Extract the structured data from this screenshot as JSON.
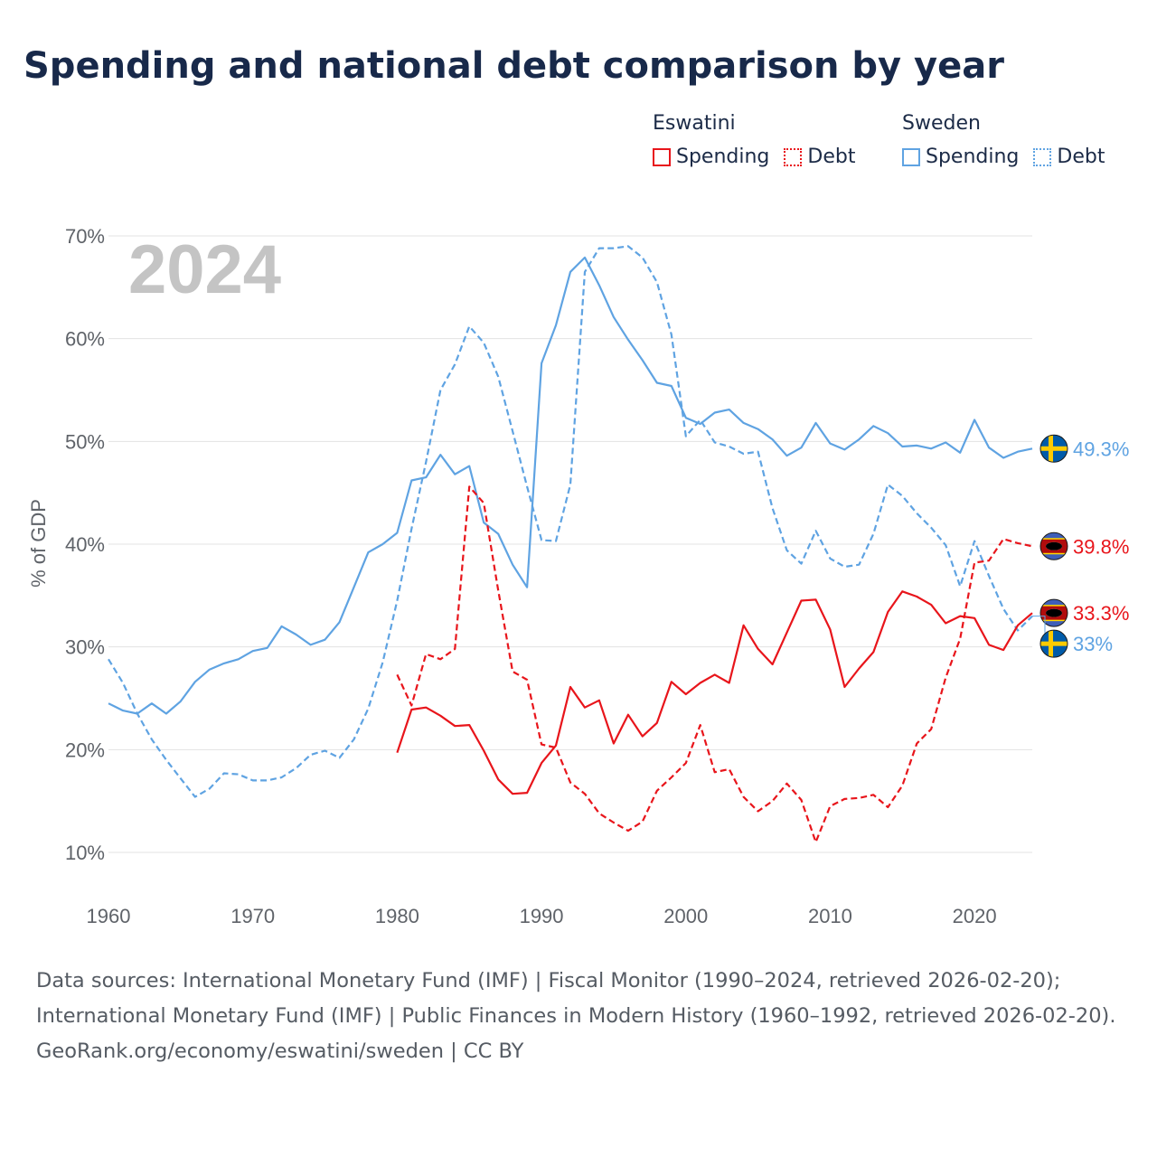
{
  "title": "Spending and national debt comparison by year",
  "legend": {
    "groups": [
      {
        "name": "Eswatini",
        "color": "#e8151b",
        "items": [
          {
            "label": "Spending",
            "style": "solid"
          },
          {
            "label": "Debt",
            "style": "dotted"
          }
        ]
      },
      {
        "name": "Sweden",
        "color": "#5fa3e2",
        "items": [
          {
            "label": "Spending",
            "style": "solid"
          },
          {
            "label": "Debt",
            "style": "dotted"
          }
        ]
      }
    ]
  },
  "chart_data": {
    "type": "line",
    "watermark_year": "2024",
    "ylabel": "% of GDP",
    "xlabel": "",
    "xlim": [
      1960,
      2024
    ],
    "ylim": [
      10,
      70
    ],
    "x_ticks": [
      1960,
      1970,
      1980,
      1990,
      2000,
      2010,
      2020
    ],
    "y_ticks": [
      10,
      20,
      30,
      40,
      50,
      60,
      70
    ],
    "y_tick_labels": [
      "10%",
      "20%",
      "30%",
      "40%",
      "50%",
      "60%",
      "70%"
    ],
    "grid": true,
    "series": [
      {
        "name": "Sweden Spending",
        "country": "Sweden",
        "metric": "Spending",
        "dash": "solid",
        "color": "#5fa3e2",
        "end_label": "49.3%",
        "x": [
          1960,
          1961,
          1962,
          1963,
          1964,
          1965,
          1966,
          1967,
          1968,
          1969,
          1970,
          1971,
          1972,
          1973,
          1974,
          1975,
          1976,
          1977,
          1978,
          1979,
          1980,
          1981,
          1982,
          1983,
          1984,
          1985,
          1986,
          1987,
          1988,
          1989,
          1990,
          1991,
          1992,
          1993,
          1994,
          1995,
          1996,
          1997,
          1998,
          1999,
          2000,
          2001,
          2002,
          2003,
          2004,
          2005,
          2006,
          2007,
          2008,
          2009,
          2010,
          2011,
          2012,
          2013,
          2014,
          2015,
          2016,
          2017,
          2018,
          2019,
          2020,
          2021,
          2022,
          2023,
          2024
        ],
        "values": [
          24.5,
          23.8,
          23.5,
          24.5,
          23.5,
          24.7,
          26.6,
          27.8,
          28.4,
          28.8,
          29.6,
          29.9,
          32.0,
          31.2,
          30.2,
          30.7,
          32.4,
          35.8,
          39.2,
          40.0,
          41.1,
          46.2,
          46.5,
          48.7,
          46.8,
          47.6,
          42.1,
          41.0,
          38.0,
          35.8,
          57.6,
          61.3,
          66.5,
          67.9,
          65.2,
          62.1,
          59.9,
          57.9,
          55.7,
          55.4,
          52.3,
          51.7,
          52.8,
          53.1,
          51.8,
          51.2,
          50.2,
          48.6,
          49.4,
          51.8,
          49.8,
          49.2,
          50.2,
          51.5,
          50.8,
          49.5,
          49.6,
          49.3,
          49.9,
          48.9,
          52.1,
          49.4,
          48.4,
          49.0,
          49.3
        ]
      },
      {
        "name": "Sweden Debt",
        "country": "Sweden",
        "metric": "Debt",
        "dash": "dashed",
        "color": "#5fa3e2",
        "end_label": "33%",
        "x": [
          1960,
          1961,
          1962,
          1963,
          1964,
          1965,
          1966,
          1967,
          1968,
          1969,
          1970,
          1971,
          1972,
          1973,
          1974,
          1975,
          1976,
          1977,
          1978,
          1979,
          1980,
          1981,
          1982,
          1983,
          1984,
          1985,
          1986,
          1987,
          1988,
          1989,
          1990,
          1991,
          1992,
          1993,
          1994,
          1995,
          1996,
          1997,
          1998,
          1999,
          2000,
          2001,
          2002,
          2003,
          2004,
          2005,
          2006,
          2007,
          2008,
          2009,
          2010,
          2011,
          2012,
          2013,
          2014,
          2015,
          2016,
          2017,
          2018,
          2019,
          2020,
          2021,
          2022,
          2023,
          2024
        ],
        "values": [
          28.8,
          26.5,
          23.5,
          21.0,
          19.0,
          17.2,
          15.4,
          16.2,
          17.7,
          17.6,
          17.0,
          17.0,
          17.3,
          18.2,
          19.5,
          19.9,
          19.2,
          21.0,
          24.0,
          28.5,
          34.5,
          41.5,
          48.0,
          55.0,
          57.5,
          61.2,
          59.6,
          56.3,
          51.0,
          45.6,
          40.4,
          40.3,
          45.8,
          66.5,
          68.8,
          68.8,
          69.0,
          67.9,
          65.5,
          60.4,
          50.5,
          52.1,
          49.9,
          49.5,
          48.8,
          49.0,
          43.5,
          39.4,
          38.1,
          41.3,
          38.6,
          37.8,
          38.0,
          41.0,
          45.8,
          44.7,
          43.0,
          41.6,
          39.9,
          35.9,
          40.3,
          36.9,
          33.7,
          31.6,
          33.0
        ]
      },
      {
        "name": "Eswatini Spending",
        "country": "Eswatini",
        "metric": "Spending",
        "dash": "solid",
        "color": "#e8151b",
        "end_label": "33.3%",
        "x": [
          1980,
          1981,
          1982,
          1983,
          1984,
          1985,
          1986,
          1987,
          1988,
          1989,
          1990,
          1991,
          1992,
          1993,
          1994,
          1995,
          1996,
          1997,
          1998,
          1999,
          2000,
          2001,
          2002,
          2003,
          2004,
          2005,
          2006,
          2007,
          2008,
          2009,
          2010,
          2011,
          2012,
          2013,
          2014,
          2015,
          2016,
          2017,
          2018,
          2019,
          2020,
          2021,
          2022,
          2023,
          2024
        ],
        "values": [
          19.7,
          23.9,
          24.1,
          23.3,
          22.3,
          22.4,
          19.9,
          17.1,
          15.7,
          15.8,
          18.7,
          20.4,
          26.1,
          24.1,
          24.8,
          20.6,
          23.4,
          21.3,
          22.6,
          26.6,
          25.4,
          26.5,
          27.3,
          26.5,
          32.1,
          29.8,
          28.3,
          31.4,
          34.5,
          34.6,
          31.7,
          26.1,
          27.9,
          29.5,
          33.4,
          35.4,
          34.9,
          34.1,
          32.3,
          33.0,
          32.8,
          30.2,
          29.7,
          32.1,
          33.3
        ]
      },
      {
        "name": "Eswatini Debt",
        "country": "Eswatini",
        "metric": "Debt",
        "dash": "dashed",
        "color": "#e8151b",
        "end_label": "39.8%",
        "x": [
          1980,
          1981,
          1982,
          1983,
          1984,
          1985,
          1986,
          1987,
          1988,
          1989,
          1990,
          1991,
          1992,
          1993,
          1994,
          1995,
          1996,
          1997,
          1998,
          1999,
          2000,
          2001,
          2002,
          2003,
          2004,
          2005,
          2006,
          2007,
          2008,
          2009,
          2010,
          2011,
          2012,
          2013,
          2014,
          2015,
          2016,
          2017,
          2018,
          2019,
          2020,
          2021,
          2022,
          2023,
          2024
        ],
        "values": [
          27.3,
          24.3,
          29.3,
          28.8,
          29.8,
          45.6,
          44.0,
          35.5,
          27.6,
          26.8,
          20.5,
          20.2,
          16.8,
          15.7,
          13.8,
          12.9,
          12.1,
          13.0,
          16.0,
          17.3,
          18.7,
          22.4,
          17.8,
          18.1,
          15.4,
          14.0,
          15.0,
          16.7,
          15.1,
          11.0,
          14.5,
          15.2,
          15.3,
          15.6,
          14.4,
          16.5,
          20.6,
          22.0,
          27.0,
          30.8,
          38.2,
          38.4,
          40.5,
          40.1,
          39.8
        ]
      }
    ]
  },
  "footer": {
    "sources": "Data sources: International Monetary Fund (IMF) | Fiscal Monitor (1990–2024, retrieved 2026-02-20); International Monetary Fund (IMF) | Public Finances in Modern History (1960–1992, retrieved 2026-02-20).",
    "credit": "GeoRank.org/economy/eswatini/sweden | CC BY"
  }
}
